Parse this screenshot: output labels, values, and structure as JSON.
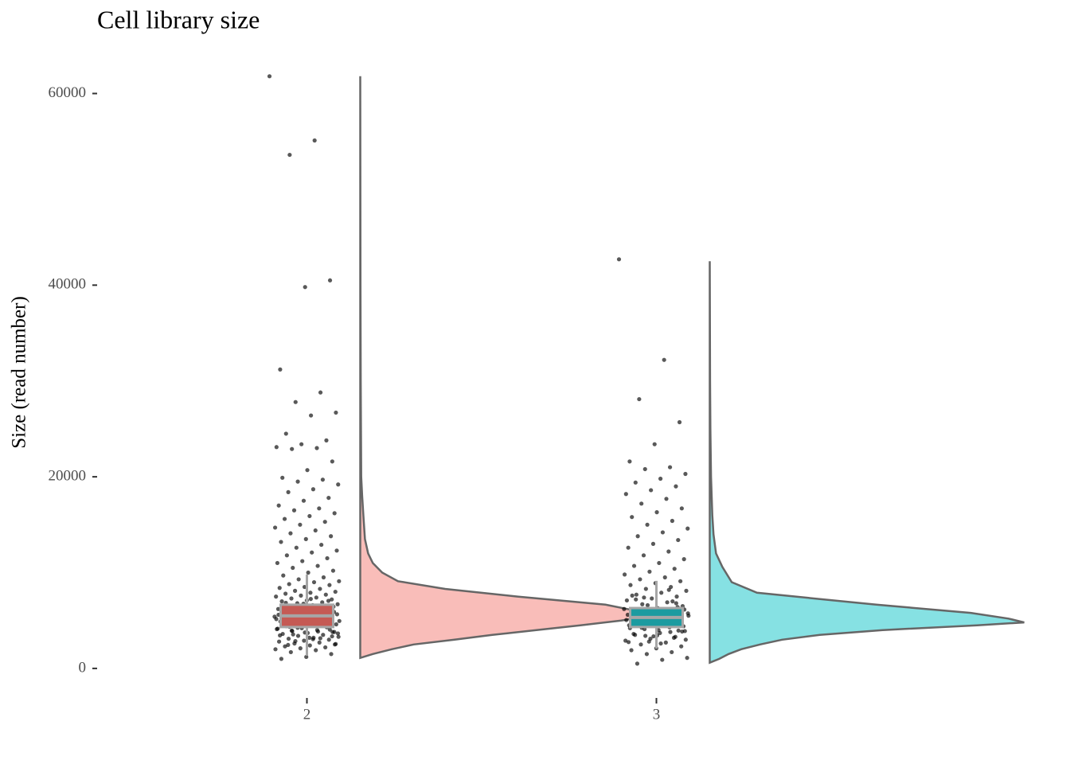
{
  "chart_data": {
    "type": "raincloud",
    "title": "Cell library size",
    "y_label": "Size (read number)",
    "categories": [
      "2",
      "3"
    ],
    "ylim": [
      -2500,
      62700
    ],
    "yticks": [
      0,
      20000,
      40000,
      60000
    ],
    "grid": false,
    "series": [
      {
        "color": "#f8766d",
        "density_color": "#f9b9b5",
        "box_color": "#c55a54",
        "points": [
          61800,
          55100,
          53600,
          40500,
          39800,
          31200,
          28800,
          27800,
          26700,
          26400,
          24500,
          23800,
          23400,
          23100,
          23000,
          22900,
          21600,
          20700,
          19900,
          19700,
          19500,
          19200,
          18700,
          18400,
          17800,
          17500,
          17000,
          16700,
          16500,
          16200,
          15900,
          15600,
          15300,
          15000,
          14700,
          14400,
          14100,
          13800,
          13500,
          13200,
          12900,
          12600,
          12300,
          12100,
          11800,
          11500,
          11200,
          11000,
          10700,
          10500,
          10200,
          10000,
          9700,
          9500,
          9300,
          9100,
          9000,
          8800,
          8700,
          8500,
          8400,
          8300,
          8100,
          8000,
          7900,
          7800,
          7700,
          7600,
          7500,
          7400,
          7300,
          7200,
          7100,
          7000,
          6900,
          6800,
          6700,
          6600,
          6500,
          6400,
          6300,
          6200,
          6100,
          6000,
          5900,
          5800,
          5700,
          5600,
          5500,
          5400,
          5300,
          5200,
          5100,
          5000,
          4900,
          4800,
          4700,
          4600,
          4500,
          4400,
          4300,
          4200,
          4100,
          4000,
          3900,
          3800,
          3700,
          3600,
          3500,
          3400,
          3300,
          3200,
          3100,
          3000,
          2900,
          2800,
          2700,
          2600,
          2500,
          2400,
          2300,
          2200,
          2100,
          2000,
          1900,
          1700,
          1500,
          1200,
          1000,
          6250,
          5950,
          5650,
          5350,
          5050,
          4750,
          4450,
          4150,
          3850,
          3550,
          6450,
          6150,
          5850,
          5550,
          5250,
          4950,
          4650,
          4350,
          4050,
          3750,
          3450,
          3150,
          2850,
          2550,
          7250,
          6850,
          6350,
          5750,
          5150,
          4550,
          3950,
          3350,
          6550,
          5450,
          4850,
          4250,
          3650,
          3050,
          2450,
          7050,
          6750,
          5600,
          5000,
          4400,
          3800,
          3200
        ],
        "box": {
          "whisker_low": 1330,
          "q1": 4320,
          "median": 5480,
          "q3": 6650,
          "whisker_high": 9800
        },
        "density": {
          "y": [
            1100,
            1500,
            2000,
            2500,
            3000,
            3500,
            4000,
            4500,
            5000,
            5600,
            6000,
            6650,
            7500,
            8300,
            9100,
            10000,
            11000,
            12000,
            13500,
            16000,
            18000,
            20000,
            30000,
            40000,
            61800
          ],
          "density": [
            0,
            0.04,
            0.1,
            0.17,
            0.3,
            0.42,
            0.56,
            0.7,
            0.83,
            0.94,
            0.88,
            0.78,
            0.5,
            0.27,
            0.12,
            0.07,
            0.04,
            0.025,
            0.015,
            0.01,
            0.006,
            0.003,
            0.0015,
            0.0008,
            0
          ]
        }
      },
      {
        "color": "#00bfc4",
        "density_color": "#7fdfe1",
        "box_color": "#1c9ba0",
        "points": [
          42700,
          32200,
          28100,
          25700,
          23400,
          21600,
          21000,
          20800,
          20300,
          19800,
          19400,
          19000,
          18600,
          18200,
          17700,
          17200,
          16700,
          16300,
          15800,
          15400,
          15000,
          14600,
          14200,
          13800,
          13400,
          13000,
          12600,
          12200,
          11800,
          11400,
          11000,
          10700,
          10400,
          10100,
          9800,
          9500,
          9300,
          9100,
          8900,
          8700,
          8500,
          8300,
          8100,
          7900,
          7700,
          7500,
          7300,
          7100,
          6900,
          6700,
          6500,
          6300,
          6100,
          5900,
          5700,
          5500,
          5300,
          5100,
          4900,
          4700,
          4500,
          4300,
          4100,
          3900,
          3700,
          3500,
          3300,
          3100,
          2900,
          2700,
          2500,
          2300,
          2100,
          1900,
          1700,
          1500,
          1100,
          900,
          500,
          6400,
          6000,
          5600,
          5200,
          4800,
          4400,
          4000,
          3600,
          3200,
          2800,
          6200,
          5800,
          5400,
          5000,
          4600,
          4200,
          3800,
          3400,
          3000,
          2600,
          7200,
          6800,
          5450,
          5050,
          4650,
          4250,
          3850,
          3450,
          7600,
          7000,
          6600,
          5750,
          5150,
          4550,
          3950,
          3350,
          2750,
          8200,
          7400,
          6150,
          4850,
          4450
        ],
        "box": {
          "whisker_low": 2080,
          "q1": 4320,
          "median": 5320,
          "q3": 6300,
          "whisker_high": 9140
        },
        "density": {
          "y": [
            600,
            1000,
            1500,
            2000,
            2500,
            3000,
            3500,
            4000,
            4500,
            4800,
            5200,
            5800,
            6650,
            7900,
            9000,
            10600,
            12000,
            14000,
            16000,
            20000,
            25000,
            30000,
            42500
          ],
          "density": [
            0,
            0.03,
            0.06,
            0.1,
            0.16,
            0.23,
            0.35,
            0.55,
            0.85,
            1,
            0.95,
            0.83,
            0.53,
            0.15,
            0.07,
            0.04,
            0.02,
            0.012,
            0.008,
            0.004,
            0.002,
            0.001,
            0
          ]
        }
      }
    ]
  }
}
